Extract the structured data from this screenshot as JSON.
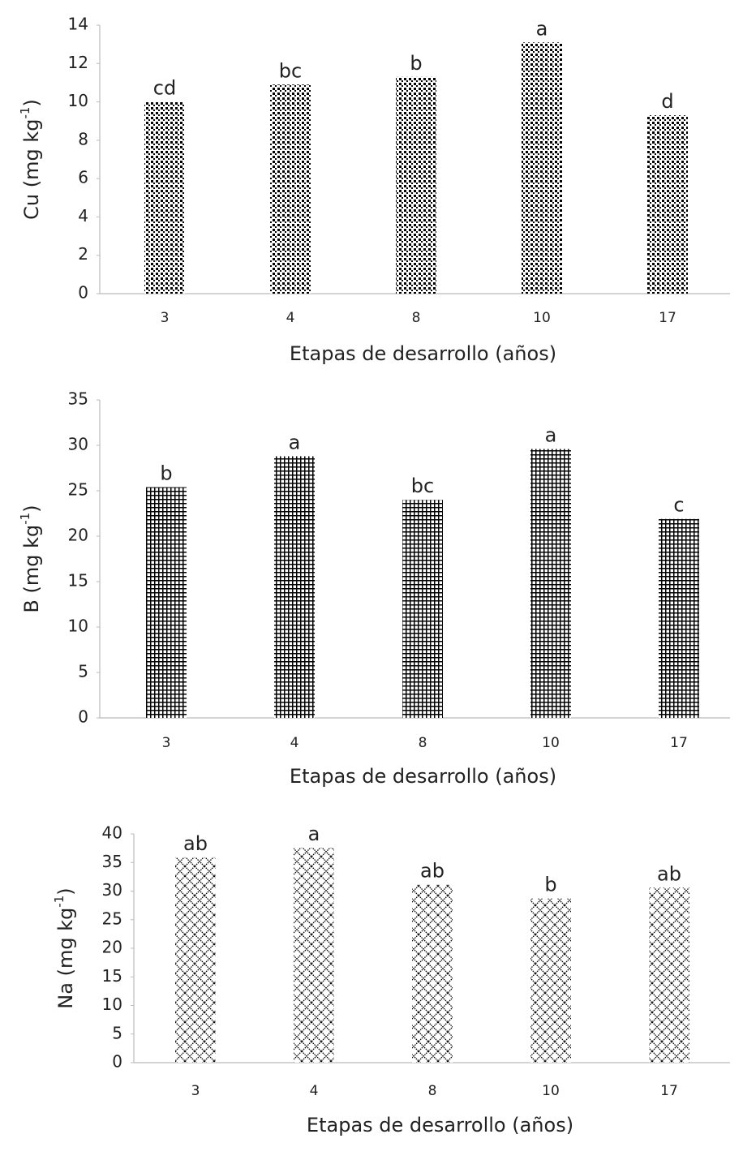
{
  "chart_data": [
    {
      "type": "bar",
      "ylabel": [
        "Cu (mg kg",
        "-1",
        ")"
      ],
      "xlabel": "Etapas de desarrollo (años)",
      "categories": [
        "3",
        "4",
        "8",
        "10",
        "17"
      ],
      "values": [
        10.0,
        10.9,
        11.3,
        13.1,
        9.3
      ],
      "annotations": [
        "cd",
        "bc",
        "b",
        "a",
        "d"
      ],
      "ylim": [
        0,
        14
      ],
      "yticks": [
        0,
        2,
        4,
        6,
        8,
        10,
        12,
        14
      ],
      "pattern": "dots",
      "color": "#000000"
    },
    {
      "type": "bar",
      "ylabel": [
        "B (mg kg",
        "-1",
        ")"
      ],
      "xlabel": "Etapas de desarrollo (años)",
      "categories": [
        "3",
        "4",
        "8",
        "10",
        "17"
      ],
      "values": [
        25.4,
        28.8,
        24.0,
        29.6,
        21.9
      ],
      "annotations": [
        "b",
        "a",
        "bc",
        "a",
        "c"
      ],
      "ylim": [
        0,
        35
      ],
      "yticks": [
        0,
        5,
        10,
        15,
        20,
        25,
        30,
        35
      ],
      "pattern": "grid",
      "color": "#000000"
    },
    {
      "type": "bar",
      "ylabel": [
        "Na (mg kg",
        "-1",
        ")"
      ],
      "xlabel": "Etapas de desarrollo (años)",
      "categories": [
        "3",
        "4",
        "8",
        "10",
        "17"
      ],
      "values": [
        35.9,
        37.6,
        31.1,
        28.7,
        30.6
      ],
      "annotations": [
        "ab",
        "a",
        "ab",
        "b",
        "ab"
      ],
      "ylim": [
        0,
        40
      ],
      "yticks": [
        0,
        5,
        10,
        15,
        20,
        25,
        30,
        35,
        40
      ],
      "pattern": "crosshatch",
      "color": "#000000"
    }
  ]
}
